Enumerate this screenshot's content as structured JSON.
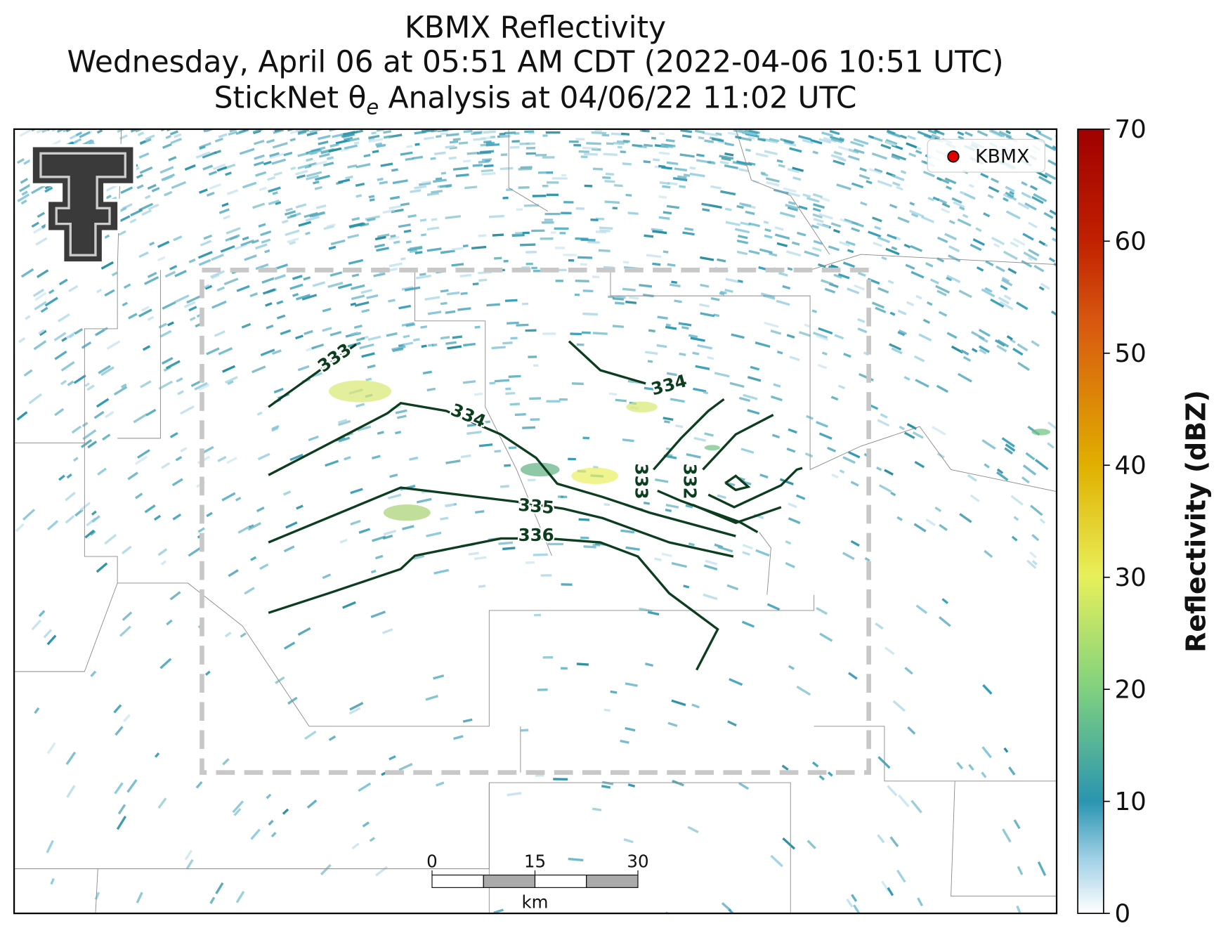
{
  "title_lines": [
    "KBMX Reflectivity",
    "Wednesday, April 06 at 05:51 AM CDT (2022-04-06 10:51 UTC)"
  ],
  "subtitle_parts": [
    "StickNet θ",
    "e",
    " Analysis at 04/06/22 11:02 UTC"
  ],
  "legend": {
    "name": "KBMX",
    "color": "#e00000",
    "corner": "upper right"
  },
  "colorbar": {
    "label": "Reflectivity (dBZ)",
    "lim": [
      0,
      70
    ],
    "ticks": [
      0,
      10,
      20,
      30,
      40,
      50,
      60,
      70
    ]
  },
  "contours": [
    {
      "level": 333
    },
    {
      "level": 334
    },
    {
      "level": 334
    },
    {
      "level": 335
    },
    {
      "level": 336
    },
    {
      "level": 333
    },
    {
      "level": 332
    }
  ],
  "scale_bar": {
    "ticks": [
      0,
      15,
      30
    ],
    "unit": "km"
  }
}
